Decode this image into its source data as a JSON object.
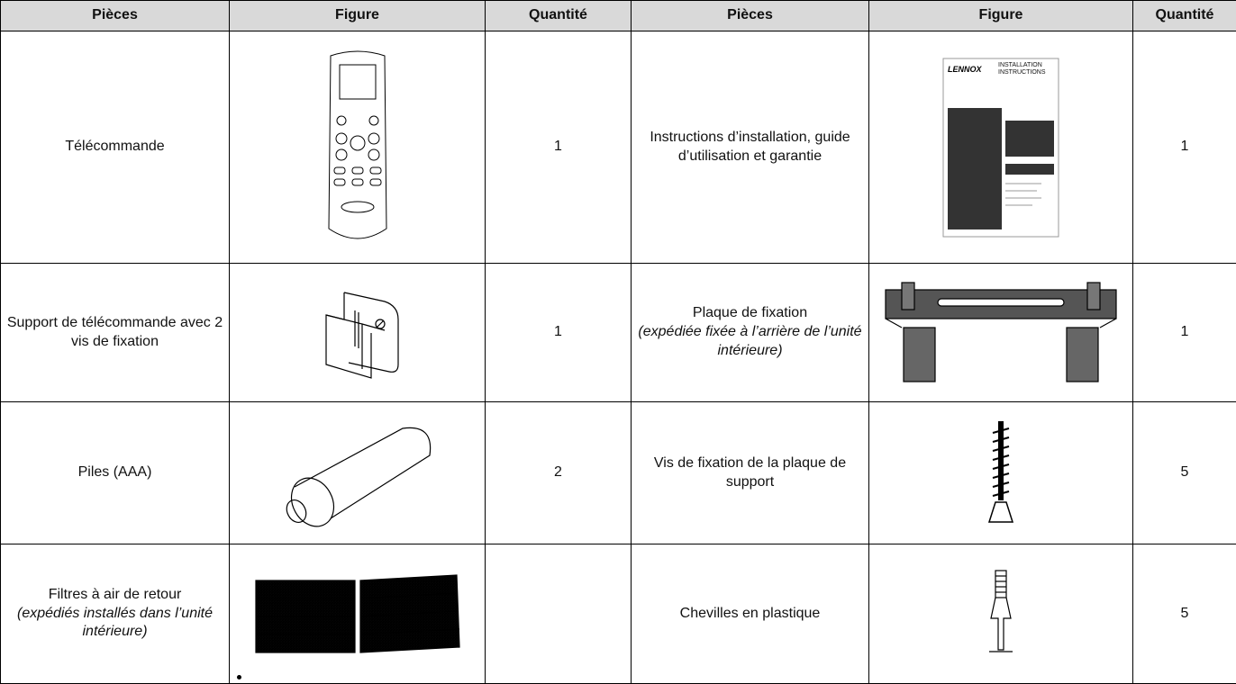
{
  "table": {
    "header": [
      "Pièces",
      "Figure",
      "Quantité",
      "Pièces",
      "Figure",
      "Quantité"
    ],
    "rows": [
      {
        "left_part": "Télécommande",
        "left_qty": 1,
        "right_part": "Instructions d’installation, guide d’utilisation et garantie",
        "right_qty": 1
      },
      {
        "left_part": "Support de télécommande avec 2 vis de fixation",
        "left_qty": 1,
        "right_part": "Plaque de fixation",
        "right_note": "(expédiée fixée à l’arrière de l’unité intérieure)",
        "right_qty": 1
      },
      {
        "left_part": "Piles (AAA)",
        "left_qty": 2,
        "right_part": "Vis de fixation de la plaque de support",
        "right_qty": 5
      },
      {
        "left_part": "Filtres à air de retour",
        "left_note": "(expédiés installés dans l’unité intérieure)",
        "left_qty": null,
        "right_part": "Chevilles en plastique",
        "right_qty": 5
      }
    ],
    "manual_cover": {
      "brand": "LENNOX",
      "title": "INSTALLATION INSTRUCTIONS"
    }
  }
}
